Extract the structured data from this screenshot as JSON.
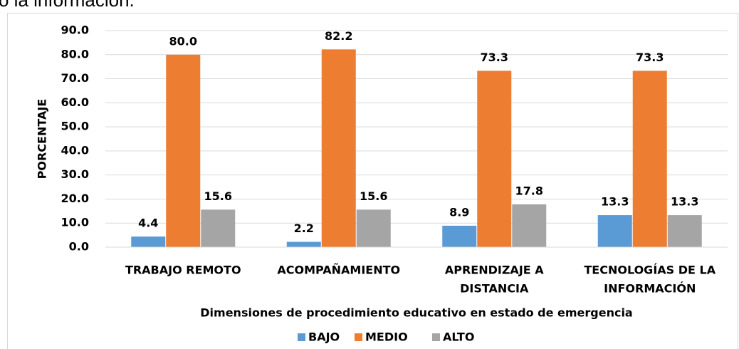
{
  "header_text": "o la información.",
  "chart_data": {
    "type": "bar",
    "y_label": "PORCENTAJE",
    "x_label": "Dimensiones de procedimiento educativo en estado de emergencia",
    "categories": [
      [
        "TRABAJO REMOTO"
      ],
      [
        "ACOMPAÑAMIENTO"
      ],
      [
        "APRENDIZAJE A",
        "DISTANCIA"
      ],
      [
        "TECNOLOGÍAS DE LA",
        "INFORMACIÓN"
      ]
    ],
    "series": [
      {
        "name": "BAJO",
        "color": "#5b9bd5",
        "values": [
          4.4,
          2.2,
          8.9,
          13.3
        ],
        "value_labels": [
          "4.4",
          "2.2",
          "8.9",
          "13.3"
        ]
      },
      {
        "name": "MEDIO",
        "color": "#ed7d31",
        "values": [
          80.0,
          82.2,
          73.3,
          73.3
        ],
        "value_labels": [
          "80.0",
          "82.2",
          "73.3",
          "73.3"
        ]
      },
      {
        "name": "ALTO",
        "color": "#a5a5a5",
        "values": [
          15.6,
          15.6,
          17.8,
          13.3
        ],
        "value_labels": [
          "15.6",
          "15.6",
          "17.8",
          "13.3"
        ]
      }
    ],
    "ylim": [
      0,
      90
    ],
    "yticks": [
      {
        "value": 0,
        "label": "0.0"
      },
      {
        "value": 10,
        "label": "10.0"
      },
      {
        "value": 20,
        "label": "20.0"
      },
      {
        "value": 30,
        "label": "30.0"
      },
      {
        "value": 40,
        "label": "40.0"
      },
      {
        "value": 50,
        "label": "50.0"
      },
      {
        "value": 60,
        "label": "60.0"
      },
      {
        "value": 70,
        "label": "70.0"
      },
      {
        "value": 80,
        "label": "80.0"
      },
      {
        "value": 90,
        "label": "90.0"
      }
    ],
    "grid": true,
    "legend": "bottom"
  }
}
